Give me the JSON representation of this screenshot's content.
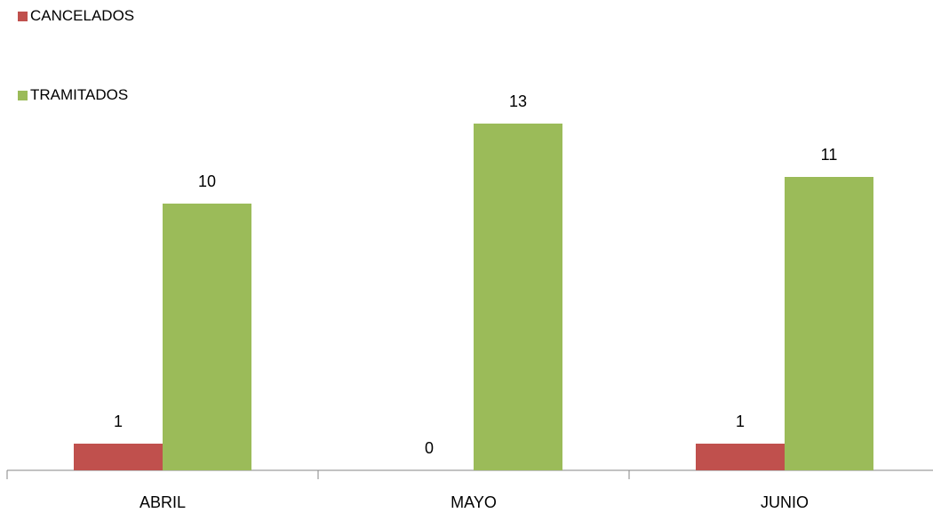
{
  "chart_data": {
    "type": "bar",
    "categories": [
      "ABRIL",
      "MAYO",
      "JUNIO"
    ],
    "series": [
      {
        "name": "CANCELADOS",
        "values": [
          1,
          0,
          1
        ],
        "color": "#c0504d"
      },
      {
        "name": "TRAMITADOS",
        "values": [
          10,
          13,
          11
        ],
        "color": "#9bbb59"
      }
    ],
    "title": "",
    "xlabel": "",
    "ylabel": "",
    "ylim": [
      0,
      13
    ],
    "grid": false,
    "data_labels": true,
    "legend_position": "top-left"
  }
}
